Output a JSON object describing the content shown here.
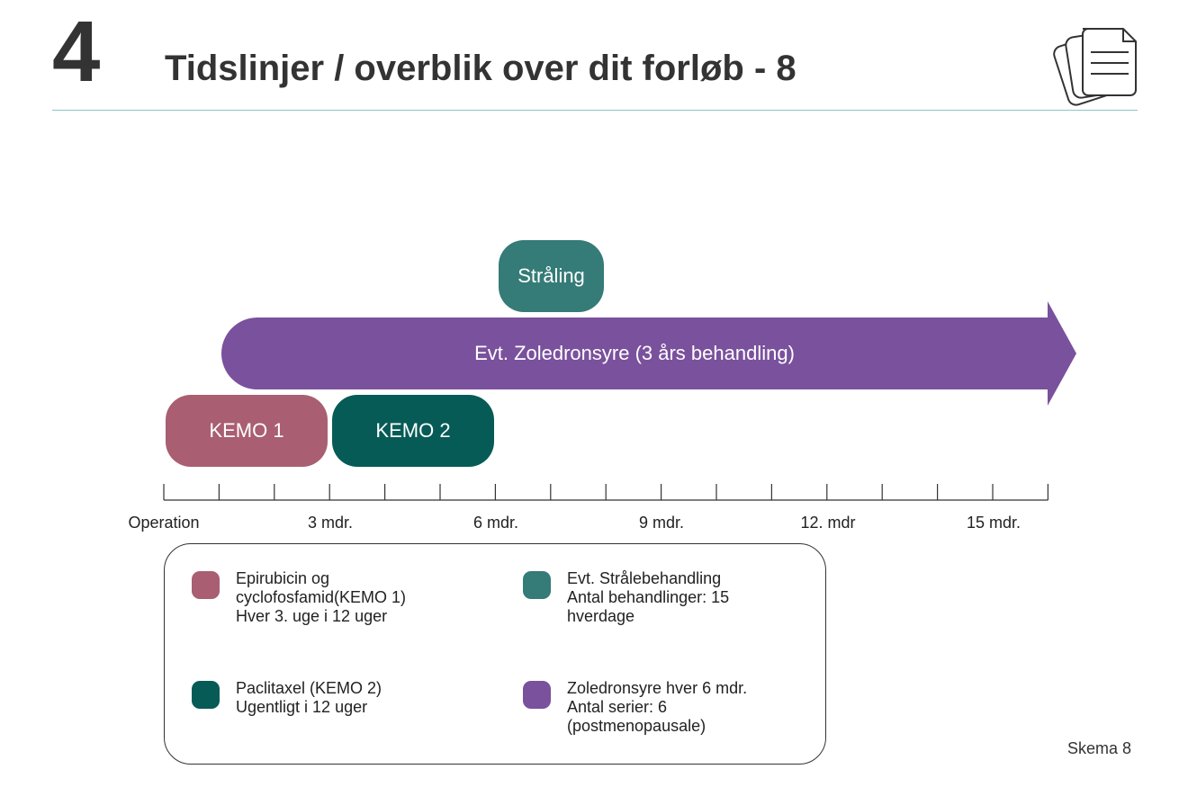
{
  "header": {
    "chapter_number": "4",
    "title": "Tidslinjer / overblik over dit forløb - 8"
  },
  "timeline": {
    "bars": {
      "straaling": {
        "label": "Stråling",
        "color": "#357b77"
      },
      "zoledronsyre": {
        "label": "Evt. Zoledronsyre (3 års behandling)",
        "color": "#7a519c"
      },
      "kemo1": {
        "label": "KEMO 1",
        "color": "#a95e72"
      },
      "kemo2": {
        "label": "KEMO 2",
        "color": "#065b56"
      }
    },
    "axis": {
      "tick_labels": [
        "Operation",
        "3 mdr.",
        "6 mdr.",
        "9 mdr.",
        "12. mdr",
        "15 mdr."
      ]
    }
  },
  "legend": {
    "items": [
      {
        "color": "#a95e72",
        "lines": [
          "Epirubicin og",
          "cyclofosfamid(KEMO 1)",
          "Hver 3. uge i 12 uger"
        ]
      },
      {
        "color": "#065b56",
        "lines": [
          "Paclitaxel (KEMO 2)",
          "Ugentligt i 12 uger"
        ]
      },
      {
        "color": "#357b77",
        "lines": [
          "Evt. Strålebehandling",
          "Antal behandlinger: 15",
          "hverdage"
        ]
      },
      {
        "color": "#7a519c",
        "lines": [
          "Zoledronsyre hver 6 mdr.",
          "Antal serier: 6",
          "(postmenopausale)"
        ]
      }
    ]
  },
  "footer": {
    "label": "Skema 8"
  },
  "icons": {
    "document": "document-stack-icon"
  }
}
